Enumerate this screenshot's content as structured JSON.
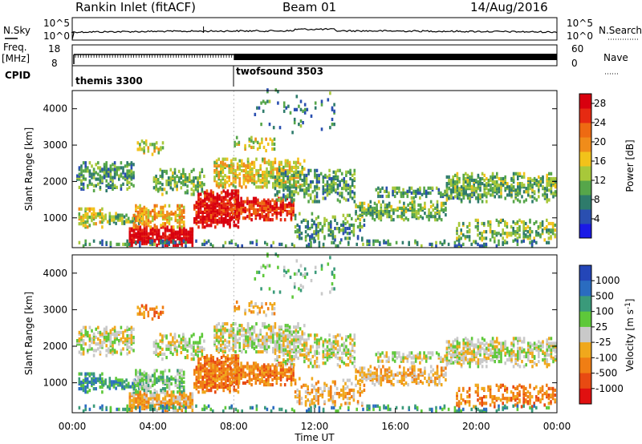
{
  "header": {
    "title": "Rankin Inlet (fitACF)",
    "beam": "Beam 01",
    "date": "14/Aug/2016"
  },
  "top_panels": {
    "nsky_label": "N.Sky",
    "nsearch_label": "N.Search",
    "nsky_ticks": [
      "10^5",
      "10^0"
    ],
    "nsearch_ticks": [
      "10^5",
      "10^0"
    ],
    "freq_label": "Freq.",
    "freq_unit": "[MHz]",
    "freq_ticks": [
      "18",
      "8"
    ],
    "nave_label": "Nave",
    "nave_ticks": [
      "60",
      "0"
    ],
    "cpid_label": "CPID",
    "cpid_programs": [
      {
        "name": "themis 3300",
        "start_hour": 0
      },
      {
        "name": "twofsound 3503",
        "start_hour": 8
      }
    ]
  },
  "chart_data": [
    {
      "type": "heatmap",
      "panel": "power",
      "xlabel": "",
      "ylabel": "Slant Range [km]",
      "xlim": [
        "00:00",
        "24:00"
      ],
      "ylim": [
        180,
        4500
      ],
      "yticks": [
        1000,
        2000,
        3000,
        4000
      ],
      "colorbar": {
        "label": "Power [dB]",
        "ticks": [
          4,
          8,
          12,
          16,
          20,
          24,
          28
        ],
        "range": [
          0,
          30
        ],
        "colors": [
          "#1a1ae6",
          "#2a4fb0",
          "#2e7b6b",
          "#56a64a",
          "#a8c83a",
          "#f2c21a",
          "#f08c1a",
          "#ee6a12",
          "#e62a12",
          "#d8000e"
        ]
      }
    },
    {
      "type": "heatmap",
      "panel": "velocity",
      "xlabel": "Time UT",
      "ylabel": "Slant Range [km]",
      "xlim": [
        "00:00",
        "24:00"
      ],
      "ylim": [
        180,
        4500
      ],
      "yticks": [
        1000,
        2000,
        3000,
        4000
      ],
      "xticks": [
        "00:00",
        "04:00",
        "08:00",
        "12:00",
        "16:00",
        "20:00",
        "00:00"
      ],
      "colorbar": {
        "label": "Velocity [m s^-1]",
        "ticks": [
          "1000",
          "500",
          "100",
          "25",
          "-25",
          "-100",
          "-500",
          "-1000"
        ],
        "colors": [
          "#2446b8",
          "#2a6cc0",
          "#3a9a7a",
          "#5ec83a",
          "#c9c9c9",
          "#f0a81c",
          "#f07e14",
          "#e84a12",
          "#e01010"
        ]
      }
    }
  ],
  "colors": {
    "frame": "#000000",
    "gray_velocity": "#c9c9c9",
    "ground_scatter": "#c9c9c9"
  }
}
